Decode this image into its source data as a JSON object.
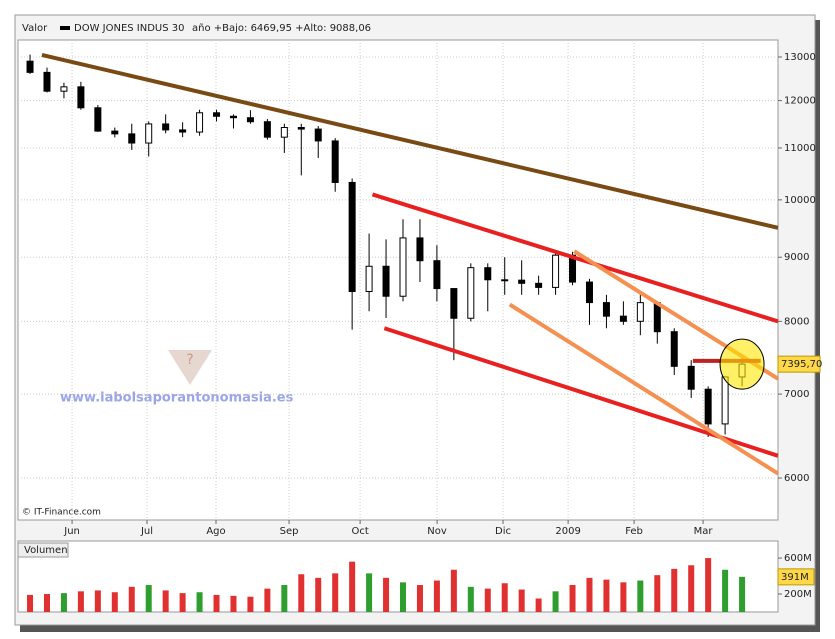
{
  "chart_data": {
    "type": "candlestick",
    "header": {
      "label": "Valor",
      "name": "DOW JONES INDUS 30",
      "range": "año +Bajo: 6469,95 +Alto: 9088,06"
    },
    "source": "© IT-Finance.com",
    "watermark": "www.labolsaporantonomasia.es",
    "log_scale": true,
    "grid": true,
    "candle_color": "#000000",
    "up_color": "#2e9e2e",
    "down_color": "#e03030",
    "xlim": [
      -0.71,
      44.12
    ],
    "ylim": [
      5555,
      13412
    ],
    "yticks": [
      6000,
      7000,
      8000,
      9000,
      10000,
      11000,
      12000,
      13000
    ],
    "xticks": [
      {
        "value": 2.48,
        "label": "Jun"
      },
      {
        "value": 6.9,
        "label": "Jul"
      },
      {
        "value": 10.97,
        "label": "Ago"
      },
      {
        "value": 15.28,
        "label": "Sep"
      },
      {
        "value": 19.47,
        "label": "Oct"
      },
      {
        "value": 24.01,
        "label": "Nov"
      },
      {
        "value": 27.9,
        "label": "Dic"
      },
      {
        "value": 31.74,
        "label": "2009"
      },
      {
        "value": 35.63,
        "label": "Feb"
      },
      {
        "value": 39.7,
        "label": "Mar"
      }
    ],
    "ohlc": [
      [
        12900,
        13058,
        12600,
        12638
      ],
      [
        12638,
        12750,
        12180,
        12209
      ],
      [
        12209,
        12400,
        12050,
        12307
      ],
      [
        12307,
        12420,
        11800,
        11842
      ],
      [
        11842,
        11900,
        11330,
        11346
      ],
      [
        11346,
        11420,
        11215,
        11288
      ],
      [
        11288,
        11500,
        10960,
        11100
      ],
      [
        11100,
        11550,
        10830,
        11496
      ],
      [
        11496,
        11700,
        11300,
        11371
      ],
      [
        11371,
        11530,
        11220,
        11326
      ],
      [
        11326,
        11800,
        11250,
        11734
      ],
      [
        11734,
        11800,
        11550,
        11659
      ],
      [
        11659,
        11700,
        11400,
        11628
      ],
      [
        11628,
        11790,
        11500,
        11543
      ],
      [
        11543,
        11600,
        11170,
        11220
      ],
      [
        11220,
        11500,
        10900,
        11421
      ],
      [
        11421,
        11500,
        10460,
        11388
      ],
      [
        11388,
        11450,
        10800,
        11143
      ],
      [
        11143,
        11200,
        10150,
        10325
      ],
      [
        10325,
        10400,
        7880,
        8451
      ],
      [
        8451,
        9400,
        8150,
        8852
      ],
      [
        8852,
        9300,
        8050,
        8378
      ],
      [
        8378,
        9650,
        8300,
        9325
      ],
      [
        9325,
        9650,
        8600,
        8943
      ],
      [
        8943,
        9200,
        8300,
        8497
      ],
      [
        8497,
        8500,
        7450,
        8046
      ],
      [
        8046,
        8900,
        8000,
        8829
      ],
      [
        8829,
        8900,
        8150,
        8635
      ],
      [
        8635,
        9000,
        8400,
        8629
      ],
      [
        8629,
        8950,
        8400,
        8579
      ],
      [
        8579,
        8700,
        8400,
        8515
      ],
      [
        8515,
        9100,
        8400,
        9034
      ],
      [
        9034,
        9090,
        8550,
        8599
      ],
      [
        8599,
        8650,
        7950,
        8281
      ],
      [
        8281,
        8400,
        7900,
        8077
      ],
      [
        8077,
        8300,
        7950,
        8001
      ],
      [
        8001,
        8400,
        7800,
        8280
      ],
      [
        8280,
        8300,
        7680,
        7850
      ],
      [
        7850,
        7900,
        7250,
        7366
      ],
      [
        7366,
        7450,
        6950,
        7063
      ],
      [
        7063,
        7100,
        6470,
        6627
      ],
      [
        6627,
        7200,
        6500,
        7224
      ],
      [
        7224,
        7500,
        7100,
        7395.7
      ]
    ],
    "last_price": {
      "value": 7395.7,
      "label": "7395,70"
    },
    "trendlines": [
      {
        "color": "#7a4a14",
        "points": [
          [
            0.7,
            13050
          ],
          [
            44.12,
            9500
          ]
        ]
      },
      {
        "color": "#e82020",
        "points": [
          [
            20.2,
            10100
          ],
          [
            44.12,
            8000
          ]
        ]
      },
      {
        "color": "#e82020",
        "points": [
          [
            20.9,
            7900
          ],
          [
            44.12,
            6250
          ]
        ]
      },
      {
        "color": "#f59050",
        "points": [
          [
            32.1,
            9100
          ],
          [
            44.12,
            7200
          ]
        ]
      },
      {
        "color": "#f59050",
        "points": [
          [
            28.3,
            8250
          ],
          [
            44.12,
            6050
          ]
        ]
      },
      {
        "color": "#c02020",
        "points": [
          [
            39.1,
            7440
          ],
          [
            43.1,
            7440
          ]
        ]
      }
    ],
    "volume": {
      "title": "Volumen",
      "ylim": [
        0,
        790
      ],
      "yticks": [
        {
          "value": 200,
          "label": "200M"
        },
        {
          "value": 600,
          "label": "600M"
        }
      ],
      "last_label": "391M",
      "values": [
        190,
        200,
        210,
        230,
        240,
        220,
        280,
        300,
        240,
        210,
        220,
        190,
        180,
        170,
        260,
        300,
        420,
        380,
        430,
        560,
        430,
        380,
        330,
        300,
        350,
        470,
        280,
        260,
        320,
        250,
        150,
        230,
        300,
        380,
        360,
        330,
        350,
        410,
        480,
        520,
        600,
        470,
        391
      ]
    }
  }
}
